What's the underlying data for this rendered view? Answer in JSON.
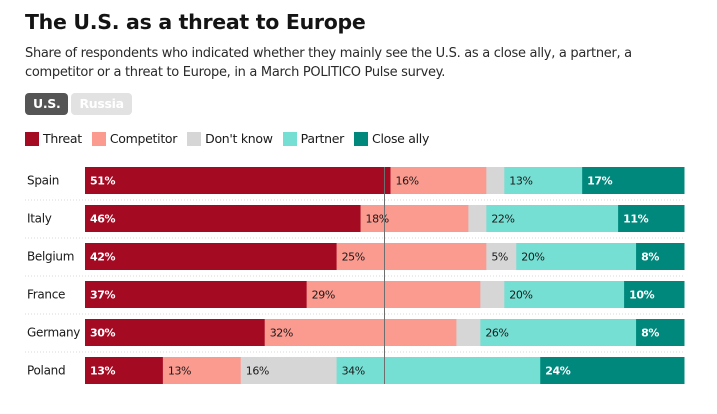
{
  "header": {
    "title": "The U.S. as a threat to Europe",
    "subtitle": "Share of respondents who indicated whether they mainly see the U.S. as a close ally, a partner, a competitor or a threat to Europe, in a March POLITICO Pulse survey."
  },
  "tabs": [
    {
      "label": "U.S.",
      "active": true
    },
    {
      "label": "Russia",
      "active": false
    }
  ],
  "chart_data": {
    "type": "bar",
    "orientation": "horizontal",
    "stacked": true,
    "normalized": true,
    "title": "The U.S. as a threat to Europe",
    "xlabel": "",
    "ylabel": "",
    "xlim": [
      0,
      100
    ],
    "reference_line": 50,
    "legend_position": "top-left",
    "categories": [
      "Spain",
      "Italy",
      "Belgium",
      "France",
      "Germany",
      "Poland"
    ],
    "series": [
      {
        "name": "Threat",
        "color": "#a50a23",
        "label_color": "#ffffff",
        "label_bold": true,
        "values": [
          51,
          46,
          42,
          37,
          30,
          13
        ],
        "labels": [
          "51%",
          "46%",
          "42%",
          "37%",
          "30%",
          "13%"
        ]
      },
      {
        "name": "Competitor",
        "color": "#fb9a8f",
        "label_color": "#1a1a1a",
        "label_bold": false,
        "values": [
          16,
          18,
          25,
          29,
          32,
          13
        ],
        "labels": [
          "16%",
          "18%",
          "25%",
          "29%",
          "32%",
          "13%"
        ]
      },
      {
        "name": "Don't know",
        "color": "#d6d6d6",
        "label_color": "#1a1a1a",
        "label_bold": false,
        "values": [
          3,
          3,
          5,
          4,
          4,
          16
        ],
        "labels": [
          "",
          "",
          "5%",
          "",
          "",
          "16%"
        ]
      },
      {
        "name": "Partner",
        "color": "#76dfd3",
        "label_color": "#1a1a1a",
        "label_bold": false,
        "values": [
          13,
          22,
          20,
          20,
          26,
          34
        ],
        "labels": [
          "13%",
          "22%",
          "20%",
          "20%",
          "26%",
          "34%"
        ]
      },
      {
        "name": "Close ally",
        "color": "#00887d",
        "label_color": "#ffffff",
        "label_bold": true,
        "values": [
          17,
          11,
          8,
          10,
          8,
          24
        ],
        "labels": [
          "17%",
          "11%",
          "8%",
          "10%",
          "8%",
          "24%"
        ]
      }
    ]
  }
}
